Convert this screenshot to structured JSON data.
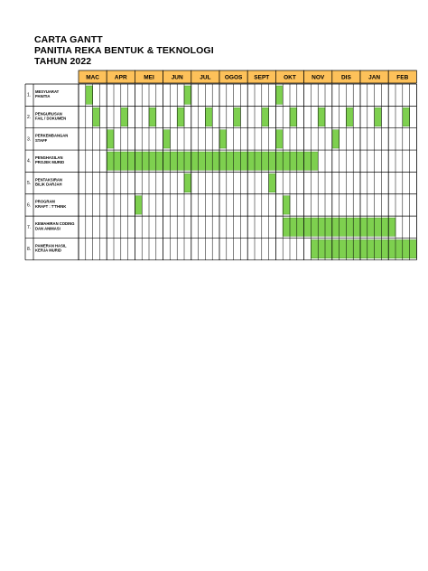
{
  "document": {
    "title_lines": [
      "CARTA GANTT",
      "PANITIA REKA BENTUK & TEKNOLOGI",
      "TAHUN 2022"
    ]
  },
  "colors": {
    "header_fill": "#fdc15a",
    "bar_fill": "#7ed04f",
    "bar_stroke": "#4e9a2a",
    "grid": "#000000"
  },
  "gantt": {
    "months": [
      "MAC",
      "APR",
      "MEI",
      "JUN",
      "JUL",
      "OGOS",
      "SEPT",
      "OKT",
      "NOV",
      "DIS",
      "JAN",
      "FEB"
    ],
    "weeks_per_month": 4,
    "rows": [
      {
        "no": "1.",
        "activity": [
          "MESYUARAT",
          "PANITIA"
        ],
        "filled_weeks": [
          2,
          16,
          29
        ]
      },
      {
        "no": "2.",
        "activity": [
          "PENGURUSAN",
          "FAIL / DOKUMEN"
        ],
        "filled_weeks": [
          3,
          7,
          11,
          15,
          19,
          23,
          27,
          31,
          35,
          39,
          43,
          47
        ]
      },
      {
        "no": "3.",
        "activity": [
          "PERKEMBANGAN",
          "STAFF"
        ],
        "filled_weeks": [
          5,
          13,
          21,
          29,
          37
        ]
      },
      {
        "no": "4.",
        "activity": [
          "PENGHASILAN",
          "PROJEK MURID"
        ],
        "filled_ranges": [
          [
            5,
            34
          ]
        ]
      },
      {
        "no": "5.",
        "activity": [
          "PENTAKSIRAN",
          "BILIK DARJAH"
        ],
        "filled_weeks": [
          16,
          28
        ]
      },
      {
        "no": "6.",
        "activity": [
          "PROGRAM",
          "KRAFT : T'THINK"
        ],
        "filled_weeks": [
          9,
          30
        ]
      },
      {
        "no": "7.",
        "activity": [
          "KEMAHIRAN CODING",
          "DAN ANIMASI"
        ],
        "filled_ranges": [
          [
            30,
            45
          ]
        ]
      },
      {
        "no": "8.",
        "activity": [
          "PAMERAN HASIL",
          "KERJA MURID"
        ],
        "filled_ranges": [
          [
            34,
            48
          ]
        ]
      }
    ]
  }
}
